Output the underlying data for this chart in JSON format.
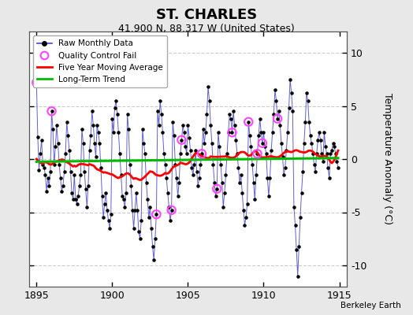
{
  "title": "ST. CHARLES",
  "subtitle": "41.900 N, 88.317 W (United States)",
  "ylabel": "Temperature Anomaly (°C)",
  "attribution": "Berkeley Earth",
  "xlim": [
    1894.5,
    1915.5
  ],
  "ylim": [
    -12,
    12
  ],
  "yticks": [
    -10,
    -5,
    0,
    5,
    10
  ],
  "xticks": [
    1895,
    1900,
    1905,
    1910,
    1915
  ],
  "fig_bg_color": "#e8e8e8",
  "plot_bg_color": "#ffffff",
  "raw_color": "#4444cc",
  "dot_color": "#000000",
  "ma_color": "#ff0000",
  "trend_color": "#00bb00",
  "qc_color": "#ff44ff",
  "grid_color": "#cccccc",
  "start_year": 1895,
  "months": 240,
  "raw_data": [
    7.2,
    2.1,
    -1.0,
    0.5,
    1.8,
    -0.5,
    -0.8,
    -1.5,
    -3.0,
    -1.8,
    -2.5,
    -1.2,
    4.5,
    2.8,
    -0.5,
    1.2,
    3.2,
    1.5,
    -0.5,
    -1.8,
    -3.0,
    -2.5,
    -1.2,
    0.5,
    3.5,
    2.2,
    0.8,
    -1.2,
    -3.2,
    -3.8,
    -1.5,
    -3.8,
    -4.2,
    -3.5,
    -2.5,
    -1.5,
    2.8,
    1.5,
    -1.2,
    -2.8,
    -4.5,
    -2.5,
    0.8,
    2.2,
    4.5,
    3.2,
    1.5,
    0.2,
    3.2,
    2.5,
    1.5,
    -0.8,
    -3.5,
    -5.5,
    -4.2,
    -3.2,
    -4.8,
    -5.8,
    -6.5,
    -5.2,
    3.8,
    2.5,
    4.8,
    5.5,
    4.2,
    2.5,
    0.5,
    -1.5,
    -3.5,
    -3.8,
    -4.5,
    -3.2,
    4.2,
    2.8,
    -0.5,
    -2.5,
    -4.8,
    -6.5,
    -4.8,
    -3.2,
    -4.8,
    -6.8,
    -7.5,
    -5.8,
    2.8,
    1.5,
    0.5,
    -2.2,
    -3.8,
    -5.5,
    -4.5,
    -6.5,
    -8.2,
    -9.5,
    -7.5,
    -5.2,
    4.5,
    3.2,
    5.5,
    4.2,
    2.5,
    0.5,
    -0.5,
    -1.8,
    -3.2,
    -4.5,
    -5.8,
    -4.8,
    3.5,
    2.2,
    -0.5,
    -1.8,
    -3.5,
    -2.2,
    0.5,
    1.8,
    3.2,
    2.5,
    1.2,
    0.5,
    3.2,
    2.0,
    0.8,
    -0.8,
    -1.5,
    -0.5,
    0.8,
    -1.2,
    -2.5,
    -1.8,
    -0.5,
    0.5,
    2.8,
    1.5,
    2.5,
    4.2,
    6.8,
    5.5,
    3.2,
    1.5,
    -0.5,
    -2.2,
    -3.5,
    -2.8,
    2.5,
    1.2,
    -0.5,
    -2.2,
    -4.5,
    -3.2,
    -1.5,
    0.5,
    2.5,
    4.2,
    3.8,
    2.5,
    4.5,
    3.2,
    1.8,
    0.5,
    -0.8,
    -2.2,
    -1.5,
    -3.2,
    -4.8,
    -6.2,
    -5.5,
    -4.2,
    3.5,
    2.2,
    1.2,
    -0.5,
    -2.2,
    -3.8,
    -1.5,
    0.5,
    2.2,
    3.8,
    2.5,
    1.5,
    2.5,
    1.2,
    0.5,
    -1.8,
    -3.5,
    -1.8,
    0.8,
    2.5,
    4.2,
    6.5,
    5.5,
    3.8,
    4.5,
    3.2,
    1.5,
    0.2,
    -1.5,
    -0.8,
    0.8,
    2.5,
    4.8,
    7.5,
    6.2,
    4.5,
    -4.5,
    -6.2,
    -8.5,
    -11.0,
    -8.2,
    -5.5,
    -3.2,
    -1.2,
    1.5,
    3.5,
    6.2,
    5.5,
    3.5,
    2.2,
    1.5,
    0.5,
    -0.5,
    -1.2,
    0.5,
    1.8,
    2.5,
    1.8,
    0.5,
    -0.2,
    2.5,
    1.2,
    0.5,
    -0.8,
    -1.8,
    0.5,
    0.8,
    1.5,
    1.2,
    0.5,
    -0.2,
    -0.8
  ],
  "qc_fail_indices": [
    0,
    12,
    95,
    107,
    115,
    131,
    143,
    155,
    168,
    175,
    179,
    191
  ],
  "trend_y": [
    -0.25,
    0.1
  ]
}
